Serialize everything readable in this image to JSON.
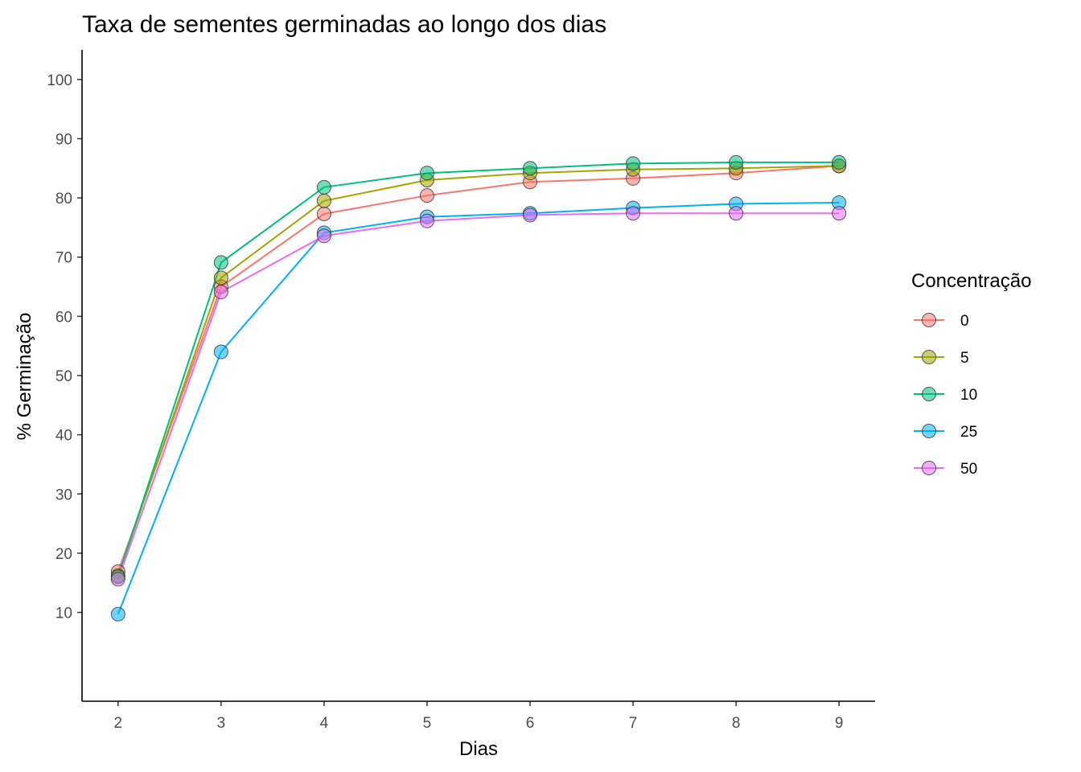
{
  "chart_data": {
    "type": "line",
    "title": "Taxa de sementes germinadas ao longo dos dias",
    "xlabel": "Dias",
    "ylabel": "% Germinação",
    "x": [
      2,
      3,
      4,
      5,
      6,
      7,
      8,
      9
    ],
    "xlim": [
      1.65,
      9.35
    ],
    "ylim": [
      -5,
      105
    ],
    "yticks": [
      10,
      20,
      30,
      40,
      50,
      60,
      70,
      80,
      90,
      100
    ],
    "grid": false,
    "legend": {
      "title": "Concentração",
      "position": "right"
    },
    "series": [
      {
        "name": "0",
        "color": "#F8766D",
        "values": [
          16.9,
          65.0,
          77.3,
          80.4,
          82.7,
          83.3,
          84.2,
          85.4
        ]
      },
      {
        "name": "5",
        "color": "#A3A500",
        "values": [
          16.2,
          66.5,
          79.5,
          83.0,
          84.2,
          84.8,
          85.0,
          85.4
        ]
      },
      {
        "name": "10",
        "color": "#00BF7D",
        "values": [
          16.0,
          69.1,
          81.8,
          84.2,
          85.0,
          85.8,
          86.0,
          86.0
        ]
      },
      {
        "name": "25",
        "color": "#00B0F6",
        "values": [
          9.7,
          54.0,
          74.1,
          76.8,
          77.4,
          78.3,
          79.0,
          79.2
        ]
      },
      {
        "name": "50",
        "color": "#E76BF3",
        "values": [
          15.6,
          64.1,
          73.6,
          76.1,
          77.1,
          77.4,
          77.4,
          77.4
        ]
      }
    ]
  }
}
